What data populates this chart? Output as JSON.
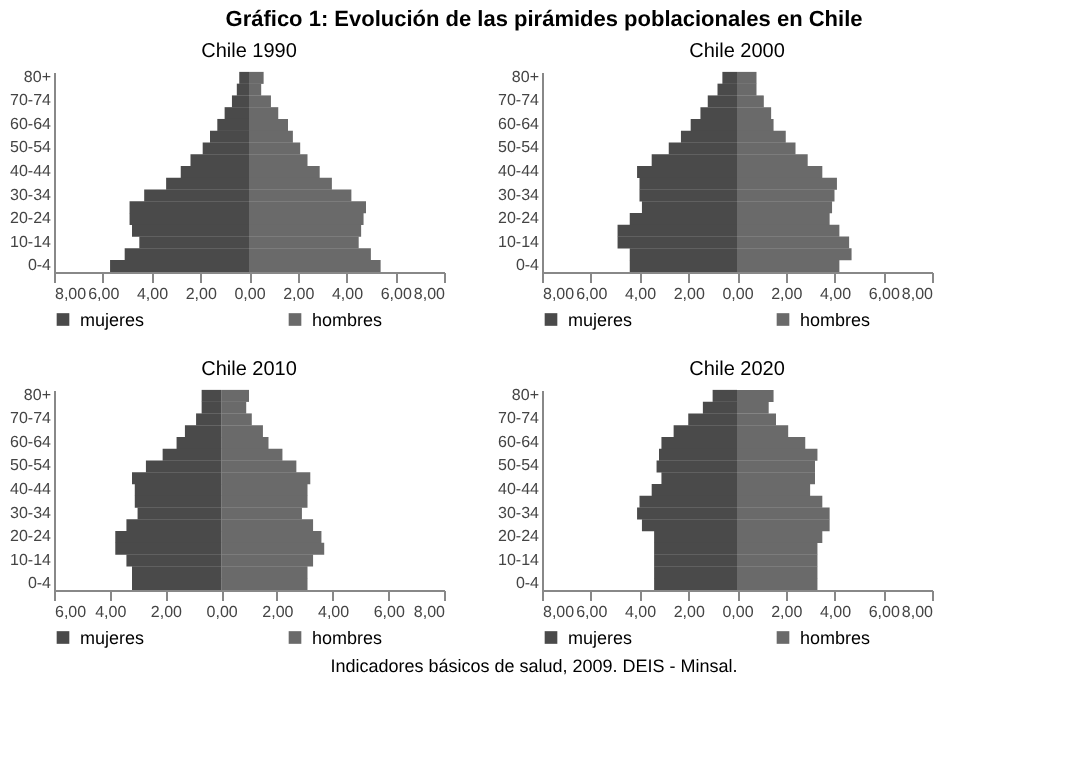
{
  "chart_data": [
    {
      "type": "bar",
      "orientation": "horizontal",
      "stacked": true,
      "title": "Chile 1990",
      "legend": "bottom",
      "annotations": [
        "Gráfico 1: Evolución de las pirámides poblacionales en Chile"
      ],
      "categories": [
        "80+",
        null,
        "70-74",
        null,
        "60-64",
        null,
        "50-54",
        null,
        "40-44",
        null,
        "30-34",
        null,
        "20-24",
        null,
        "10-14",
        null,
        "0-4"
      ],
      "xlim": [
        -8,
        8
      ],
      "xticks": [
        {
          "value": -8,
          "label": "8,00"
        },
        {
          "value": -6,
          "label": "6,00"
        },
        {
          "value": -4,
          "label": "4,00"
        },
        {
          "value": -2,
          "label": "2,00"
        },
        {
          "value": 0,
          "label": "0,00"
        },
        {
          "value": 2,
          "label": "2,00"
        },
        {
          "value": 4,
          "label": "4,00"
        },
        {
          "value": 6,
          "label": "6,00"
        },
        {
          "value": 8,
          "label": "8,00"
        }
      ],
      "series": [
        {
          "name": "mujeres",
          "color": "#4a4a4a",
          "values": [
            -0.4,
            -0.5,
            -0.7,
            -1.0,
            -1.3,
            -1.6,
            -1.9,
            -2.4,
            -2.8,
            -3.4,
            -4.3,
            -4.9,
            -4.9,
            -4.8,
            -4.5,
            -5.1,
            -5.7
          ]
        },
        {
          "name": "hombres",
          "color": "#6a6a6a",
          "values": [
            0.6,
            0.5,
            0.9,
            1.2,
            1.6,
            1.8,
            2.1,
            2.4,
            2.9,
            3.4,
            4.2,
            4.8,
            4.7,
            4.6,
            4.5,
            5.0,
            5.4
          ]
        }
      ]
    },
    {
      "type": "bar",
      "orientation": "horizontal",
      "stacked": true,
      "title": "Chile 2000",
      "legend": "bottom",
      "categories": [
        "80+",
        null,
        "70-74",
        null,
        "60-64",
        null,
        "50-54",
        null,
        "40-44",
        null,
        "30-34",
        null,
        "20-24",
        null,
        "10-14",
        null,
        "0-4"
      ],
      "xlim": [
        -8,
        8
      ],
      "xticks": [
        {
          "value": -8,
          "label": "8,00"
        },
        {
          "value": -6,
          "label": "6,00"
        },
        {
          "value": -4,
          "label": "4,00"
        },
        {
          "value": -2,
          "label": "2,00"
        },
        {
          "value": 0,
          "label": "0,00"
        },
        {
          "value": 2,
          "label": "2,00"
        },
        {
          "value": 4,
          "label": "4,00"
        },
        {
          "value": 6,
          "label": "6,00"
        },
        {
          "value": 8,
          "label": "8,00"
        }
      ],
      "series": [
        {
          "name": "mujeres",
          "color": "#4a4a4a",
          "values": [
            -0.6,
            -0.8,
            -1.2,
            -1.5,
            -1.9,
            -2.3,
            -2.8,
            -3.5,
            -4.1,
            -4.0,
            -4.0,
            -3.9,
            -4.4,
            -4.9,
            -4.9,
            -4.4,
            -4.4
          ]
        },
        {
          "name": "hombres",
          "color": "#6a6a6a",
          "values": [
            0.8,
            0.8,
            1.1,
            1.4,
            1.5,
            2.0,
            2.4,
            2.9,
            3.5,
            4.1,
            4.0,
            3.9,
            3.8,
            4.2,
            4.6,
            4.7,
            4.2
          ]
        }
      ]
    },
    {
      "type": "bar",
      "orientation": "horizontal",
      "stacked": true,
      "title": "Chile 2010",
      "legend": "bottom",
      "categories": [
        "80+",
        null,
        "70-74",
        null,
        "60-64",
        null,
        "50-54",
        null,
        "40-44",
        null,
        "30-34",
        null,
        "20-24",
        null,
        "10-14",
        null,
        "0-4"
      ],
      "xlim": [
        -6,
        8
      ],
      "xticks": [
        {
          "value": -6,
          "label": "6,00"
        },
        {
          "value": -4,
          "label": "4,00"
        },
        {
          "value": -2,
          "label": "2,00"
        },
        {
          "value": 0,
          "label": "0,00"
        },
        {
          "value": 2,
          "label": "2,00"
        },
        {
          "value": 4,
          "label": "4,00"
        },
        {
          "value": 6,
          "label": "6,00"
        },
        {
          "value": 8,
          "label": "8,00"
        }
      ],
      "series": [
        {
          "name": "mujeres",
          "color": "#4a4a4a",
          "values": [
            -0.7,
            -0.7,
            -0.9,
            -1.3,
            -1.6,
            -2.1,
            -2.7,
            -3.2,
            -3.1,
            -3.1,
            -3.0,
            -3.4,
            -3.8,
            -3.8,
            -3.4,
            -3.2,
            -3.2
          ]
        },
        {
          "name": "hombres",
          "color": "#6a6a6a",
          "values": [
            1.0,
            0.9,
            1.1,
            1.5,
            1.7,
            2.2,
            2.7,
            3.2,
            3.1,
            3.1,
            2.9,
            3.3,
            3.6,
            3.7,
            3.3,
            3.1,
            3.1
          ]
        }
      ]
    },
    {
      "type": "bar",
      "orientation": "horizontal",
      "stacked": true,
      "title": "Chile 2020",
      "legend": "bottom",
      "annotations": [
        "Indicadores básicos de salud, 2009. DEIS - Minsal."
      ],
      "categories": [
        "80+",
        null,
        "70-74",
        null,
        "60-64",
        null,
        "50-54",
        null,
        "40-44",
        null,
        "30-34",
        null,
        "20-24",
        null,
        "10-14",
        null,
        "0-4"
      ],
      "xlim": [
        -8,
        8
      ],
      "xticks": [
        {
          "value": -8,
          "label": "8,00"
        },
        {
          "value": -6,
          "label": "6,00"
        },
        {
          "value": -4,
          "label": "4,00"
        },
        {
          "value": -2,
          "label": "2,00"
        },
        {
          "value": 0,
          "label": "0,00"
        },
        {
          "value": 2,
          "label": "2,00"
        },
        {
          "value": 4,
          "label": "4,00"
        },
        {
          "value": 6,
          "label": "6,00"
        },
        {
          "value": 8,
          "label": "8,00"
        }
      ],
      "series": [
        {
          "name": "mujeres",
          "color": "#4a4a4a",
          "values": [
            -1.0,
            -1.4,
            -2.0,
            -2.6,
            -3.1,
            -3.2,
            -3.3,
            -3.1,
            -3.5,
            -4.0,
            -4.1,
            -3.9,
            -3.4,
            -3.4,
            -3.4,
            -3.4,
            -3.4
          ]
        },
        {
          "name": "hombres",
          "color": "#6a6a6a",
          "values": [
            1.5,
            1.3,
            1.6,
            2.1,
            2.8,
            3.3,
            3.2,
            3.2,
            3.0,
            3.5,
            3.8,
            3.8,
            3.5,
            3.3,
            3.3,
            3.3,
            3.3
          ]
        }
      ]
    }
  ]
}
